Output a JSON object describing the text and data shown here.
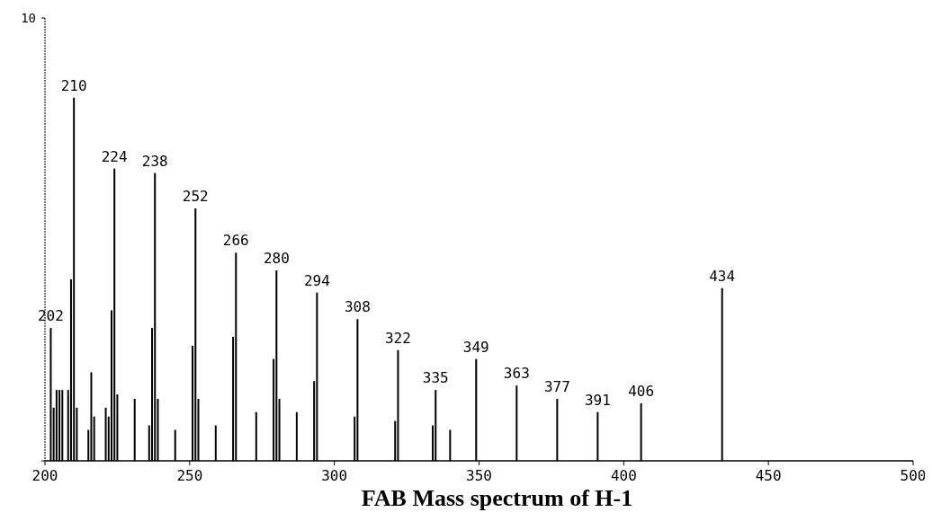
{
  "chart_data": {
    "type": "bar",
    "title": "FAB Mass spectrum of H-1",
    "color": "#000000",
    "xlim": [
      200,
      500
    ],
    "xticks": [
      200,
      250,
      300,
      350,
      400,
      450,
      500
    ],
    "ylim": [
      0,
      10
    ],
    "yticks": [
      {
        "value": 0,
        "label": null
      },
      10
    ],
    "x": [
      202,
      203,
      204,
      205,
      206,
      208,
      209,
      210,
      211,
      215,
      216,
      217,
      221,
      222,
      223,
      224,
      225,
      231,
      236,
      237,
      238,
      239,
      245,
      251,
      252,
      253,
      259,
      265,
      266,
      273,
      279,
      280,
      281,
      287,
      293,
      294,
      307,
      308,
      321,
      322,
      334,
      335,
      340,
      349,
      363,
      377,
      391,
      406,
      434
    ],
    "values": [
      3.0,
      1.2,
      1.6,
      1.6,
      1.6,
      1.6,
      4.1,
      8.2,
      1.2,
      0.7,
      2.0,
      1.0,
      1.2,
      1.0,
      3.4,
      6.6,
      1.5,
      1.4,
      0.8,
      3.0,
      6.5,
      1.4,
      0.7,
      2.6,
      5.7,
      1.4,
      0.8,
      2.8,
      4.7,
      1.1,
      2.3,
      4.3,
      1.4,
      1.1,
      1.8,
      3.8,
      1.0,
      3.2,
      0.9,
      2.5,
      0.8,
      1.6,
      0.7,
      2.3,
      1.7,
      1.4,
      1.1,
      1.3,
      3.9
    ],
    "annotations": [
      {
        "text": "202",
        "x": 202,
        "y": 3.0
      },
      {
        "text": "210",
        "x": 210,
        "y": 8.2
      },
      {
        "text": "224",
        "x": 224,
        "y": 6.6
      },
      {
        "text": "238",
        "x": 238,
        "y": 6.5
      },
      {
        "text": "252",
        "x": 252,
        "y": 5.7
      },
      {
        "text": "266",
        "x": 266,
        "y": 4.7
      },
      {
        "text": "280",
        "x": 280,
        "y": 4.3
      },
      {
        "text": "294",
        "x": 294,
        "y": 3.8
      },
      {
        "text": "308",
        "x": 308,
        "y": 3.2
      },
      {
        "text": "322",
        "x": 322,
        "y": 2.5
      },
      {
        "text": "335",
        "x": 335,
        "y": 1.6
      },
      {
        "text": "349",
        "x": 349,
        "y": 2.3
      },
      {
        "text": "363",
        "x": 363,
        "y": 1.7
      },
      {
        "text": "377",
        "x": 377,
        "y": 1.4
      },
      {
        "text": "391",
        "x": 391,
        "y": 1.1
      },
      {
        "text": "406",
        "x": 406,
        "y": 1.3
      },
      {
        "text": "434",
        "x": 434,
        "y": 3.9
      }
    ]
  }
}
